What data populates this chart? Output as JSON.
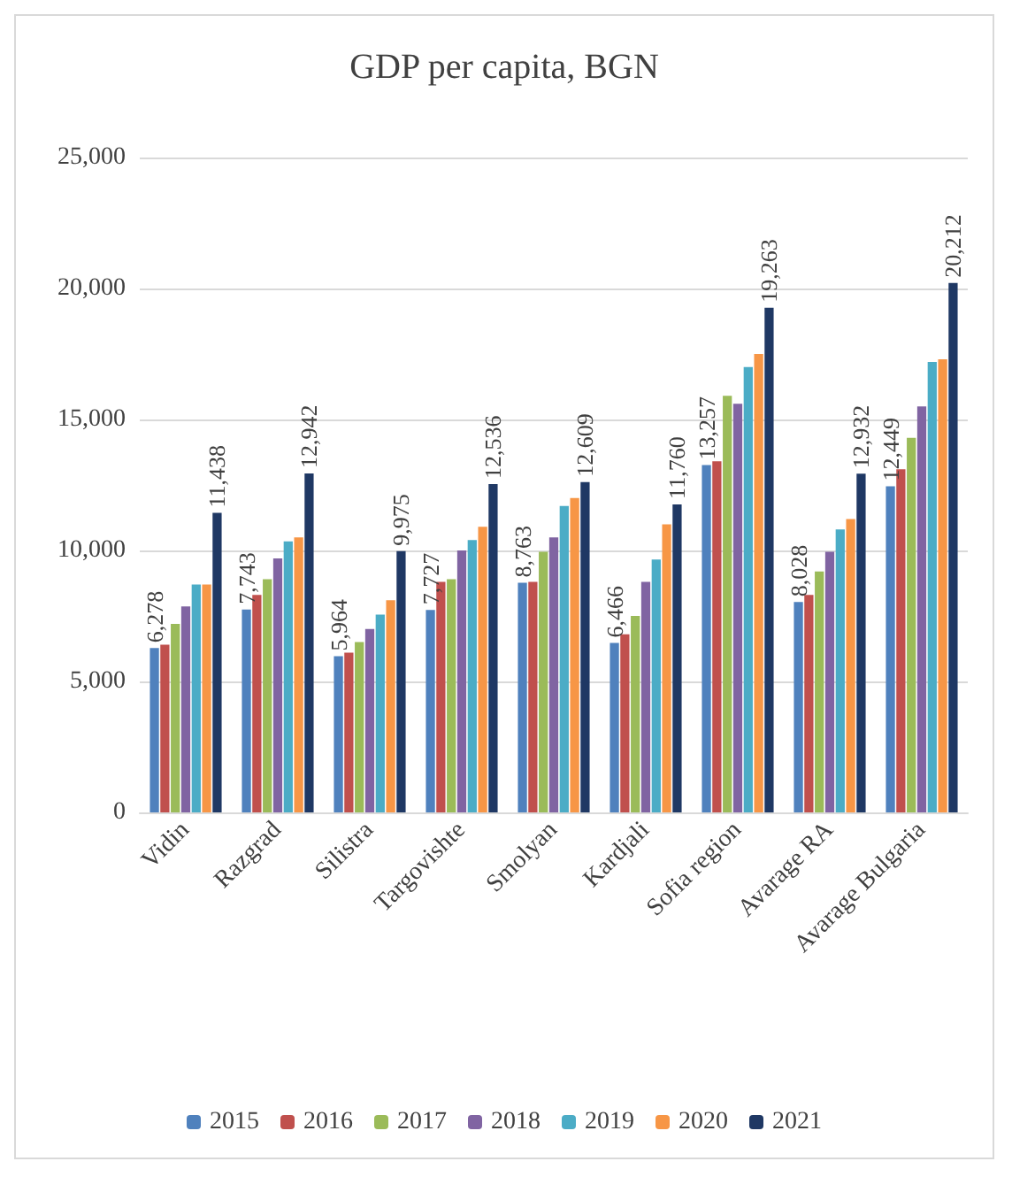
{
  "chart_data": {
    "type": "bar",
    "title": "GDP per capita, BGN",
    "categories": [
      "Vidin",
      "Razgrad",
      "Silistra",
      "Targovishte",
      "Smolyan",
      "Kardjali",
      "Sofia region",
      "Avarage RA",
      "Avarage Bulgaria"
    ],
    "series": [
      {
        "name": "2015",
        "color": "#4f81bd",
        "values": [
          6278,
          7743,
          5964,
          7727,
          8763,
          6466,
          13257,
          8028,
          12449
        ],
        "value_labels": [
          "6,278",
          "7,743",
          "5,964",
          "7,727",
          "8,763",
          "6,466",
          "13,257",
          "8,028",
          "12,449"
        ]
      },
      {
        "name": "2016",
        "color": "#c0504d",
        "values": [
          6400,
          8300,
          6100,
          8800,
          8800,
          6800,
          13400,
          8300,
          13100
        ]
      },
      {
        "name": "2017",
        "color": "#9bbb59",
        "values": [
          7200,
          8900,
          6500,
          8900,
          9950,
          7500,
          15900,
          9200,
          14300
        ]
      },
      {
        "name": "2018",
        "color": "#8064a2",
        "values": [
          7860,
          9700,
          7000,
          10000,
          10500,
          8800,
          15600,
          9950,
          15500
        ]
      },
      {
        "name": "2019",
        "color": "#4bacc6",
        "values": [
          8700,
          10350,
          7550,
          10400,
          11700,
          9650,
          17000,
          10800,
          17200
        ]
      },
      {
        "name": "2020",
        "color": "#f79646",
        "values": [
          8700,
          10500,
          8100,
          10900,
          12000,
          11000,
          17500,
          11200,
          17300
        ]
      },
      {
        "name": "2021",
        "color": "#1f3864",
        "values": [
          11438,
          12942,
          9975,
          12536,
          12609,
          11760,
          19263,
          12932,
          20212
        ],
        "value_labels": [
          "11,438",
          "12,942",
          "9,975",
          "12,536",
          "12,609",
          "11,760",
          "19,263",
          "12,932",
          "20,212"
        ]
      }
    ],
    "ylim": [
      0,
      25000
    ],
    "yticks": [
      {
        "value": 0,
        "label": "0"
      },
      {
        "value": 5000,
        "label": "5,000"
      },
      {
        "value": 10000,
        "label": "10,000"
      },
      {
        "value": 15000,
        "label": "15,000"
      },
      {
        "value": 20000,
        "label": "20,000"
      },
      {
        "value": 25000,
        "label": "25,000"
      }
    ],
    "grid": "y",
    "legend": "bottom"
  }
}
